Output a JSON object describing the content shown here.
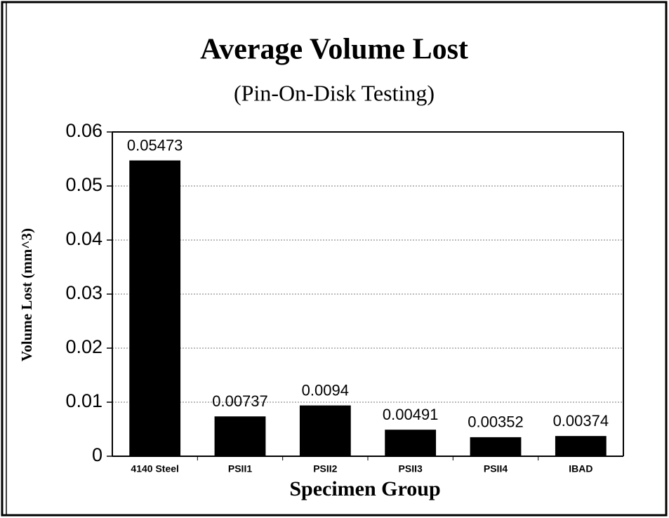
{
  "chart_data": {
    "type": "bar",
    "title": "Average Volume Lost",
    "subtitle": "(Pin-On-Disk Testing)",
    "x_label": "Specimen Group",
    "y_label": "Volume Lost (mm^3)",
    "categories": [
      "4140 Steel",
      "PSII1",
      "PSII2",
      "PSII3",
      "PSII4",
      "IBAD"
    ],
    "values": [
      0.05473,
      0.00737,
      0.0094,
      0.00491,
      0.00352,
      0.00374
    ],
    "color": "#000000",
    "ylim": [
      0,
      0.06
    ],
    "yticks": [
      0,
      0.01,
      0.02,
      0.03,
      0.04,
      0.05,
      0.06
    ],
    "grid": true
  }
}
